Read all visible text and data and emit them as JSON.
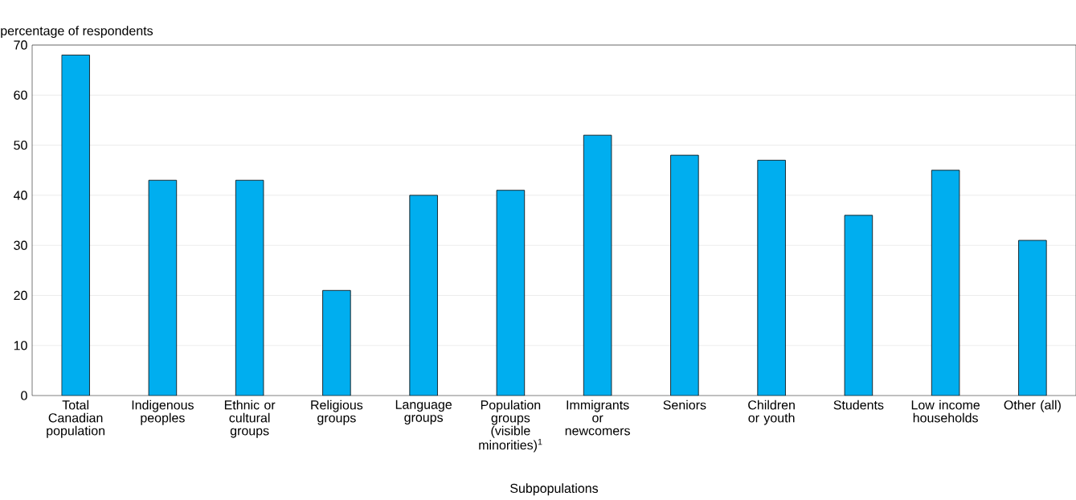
{
  "chart_data": {
    "type": "bar",
    "ylabel": "percentage of respondents",
    "xlabel": "Subpopulations",
    "categories": [
      "Total Canadian population",
      "Indigenous peoples",
      "Ethnic or cultural groups",
      "Religious groups",
      "Language groups",
      "Population groups (visible minorities)$^{1}$",
      "Immigrants or newcomers",
      "Seniors",
      "Children or youth",
      "Students",
      "Low income households",
      "Other (all)"
    ],
    "values": [
      68,
      43,
      43,
      21,
      40,
      41,
      52,
      48,
      47,
      36,
      45,
      31
    ],
    "color": "#00aeef",
    "ylim": [
      0,
      70
    ],
    "yticks": [
      0,
      10,
      20,
      30,
      40,
      50,
      60,
      70
    ],
    "grid": "y"
  }
}
